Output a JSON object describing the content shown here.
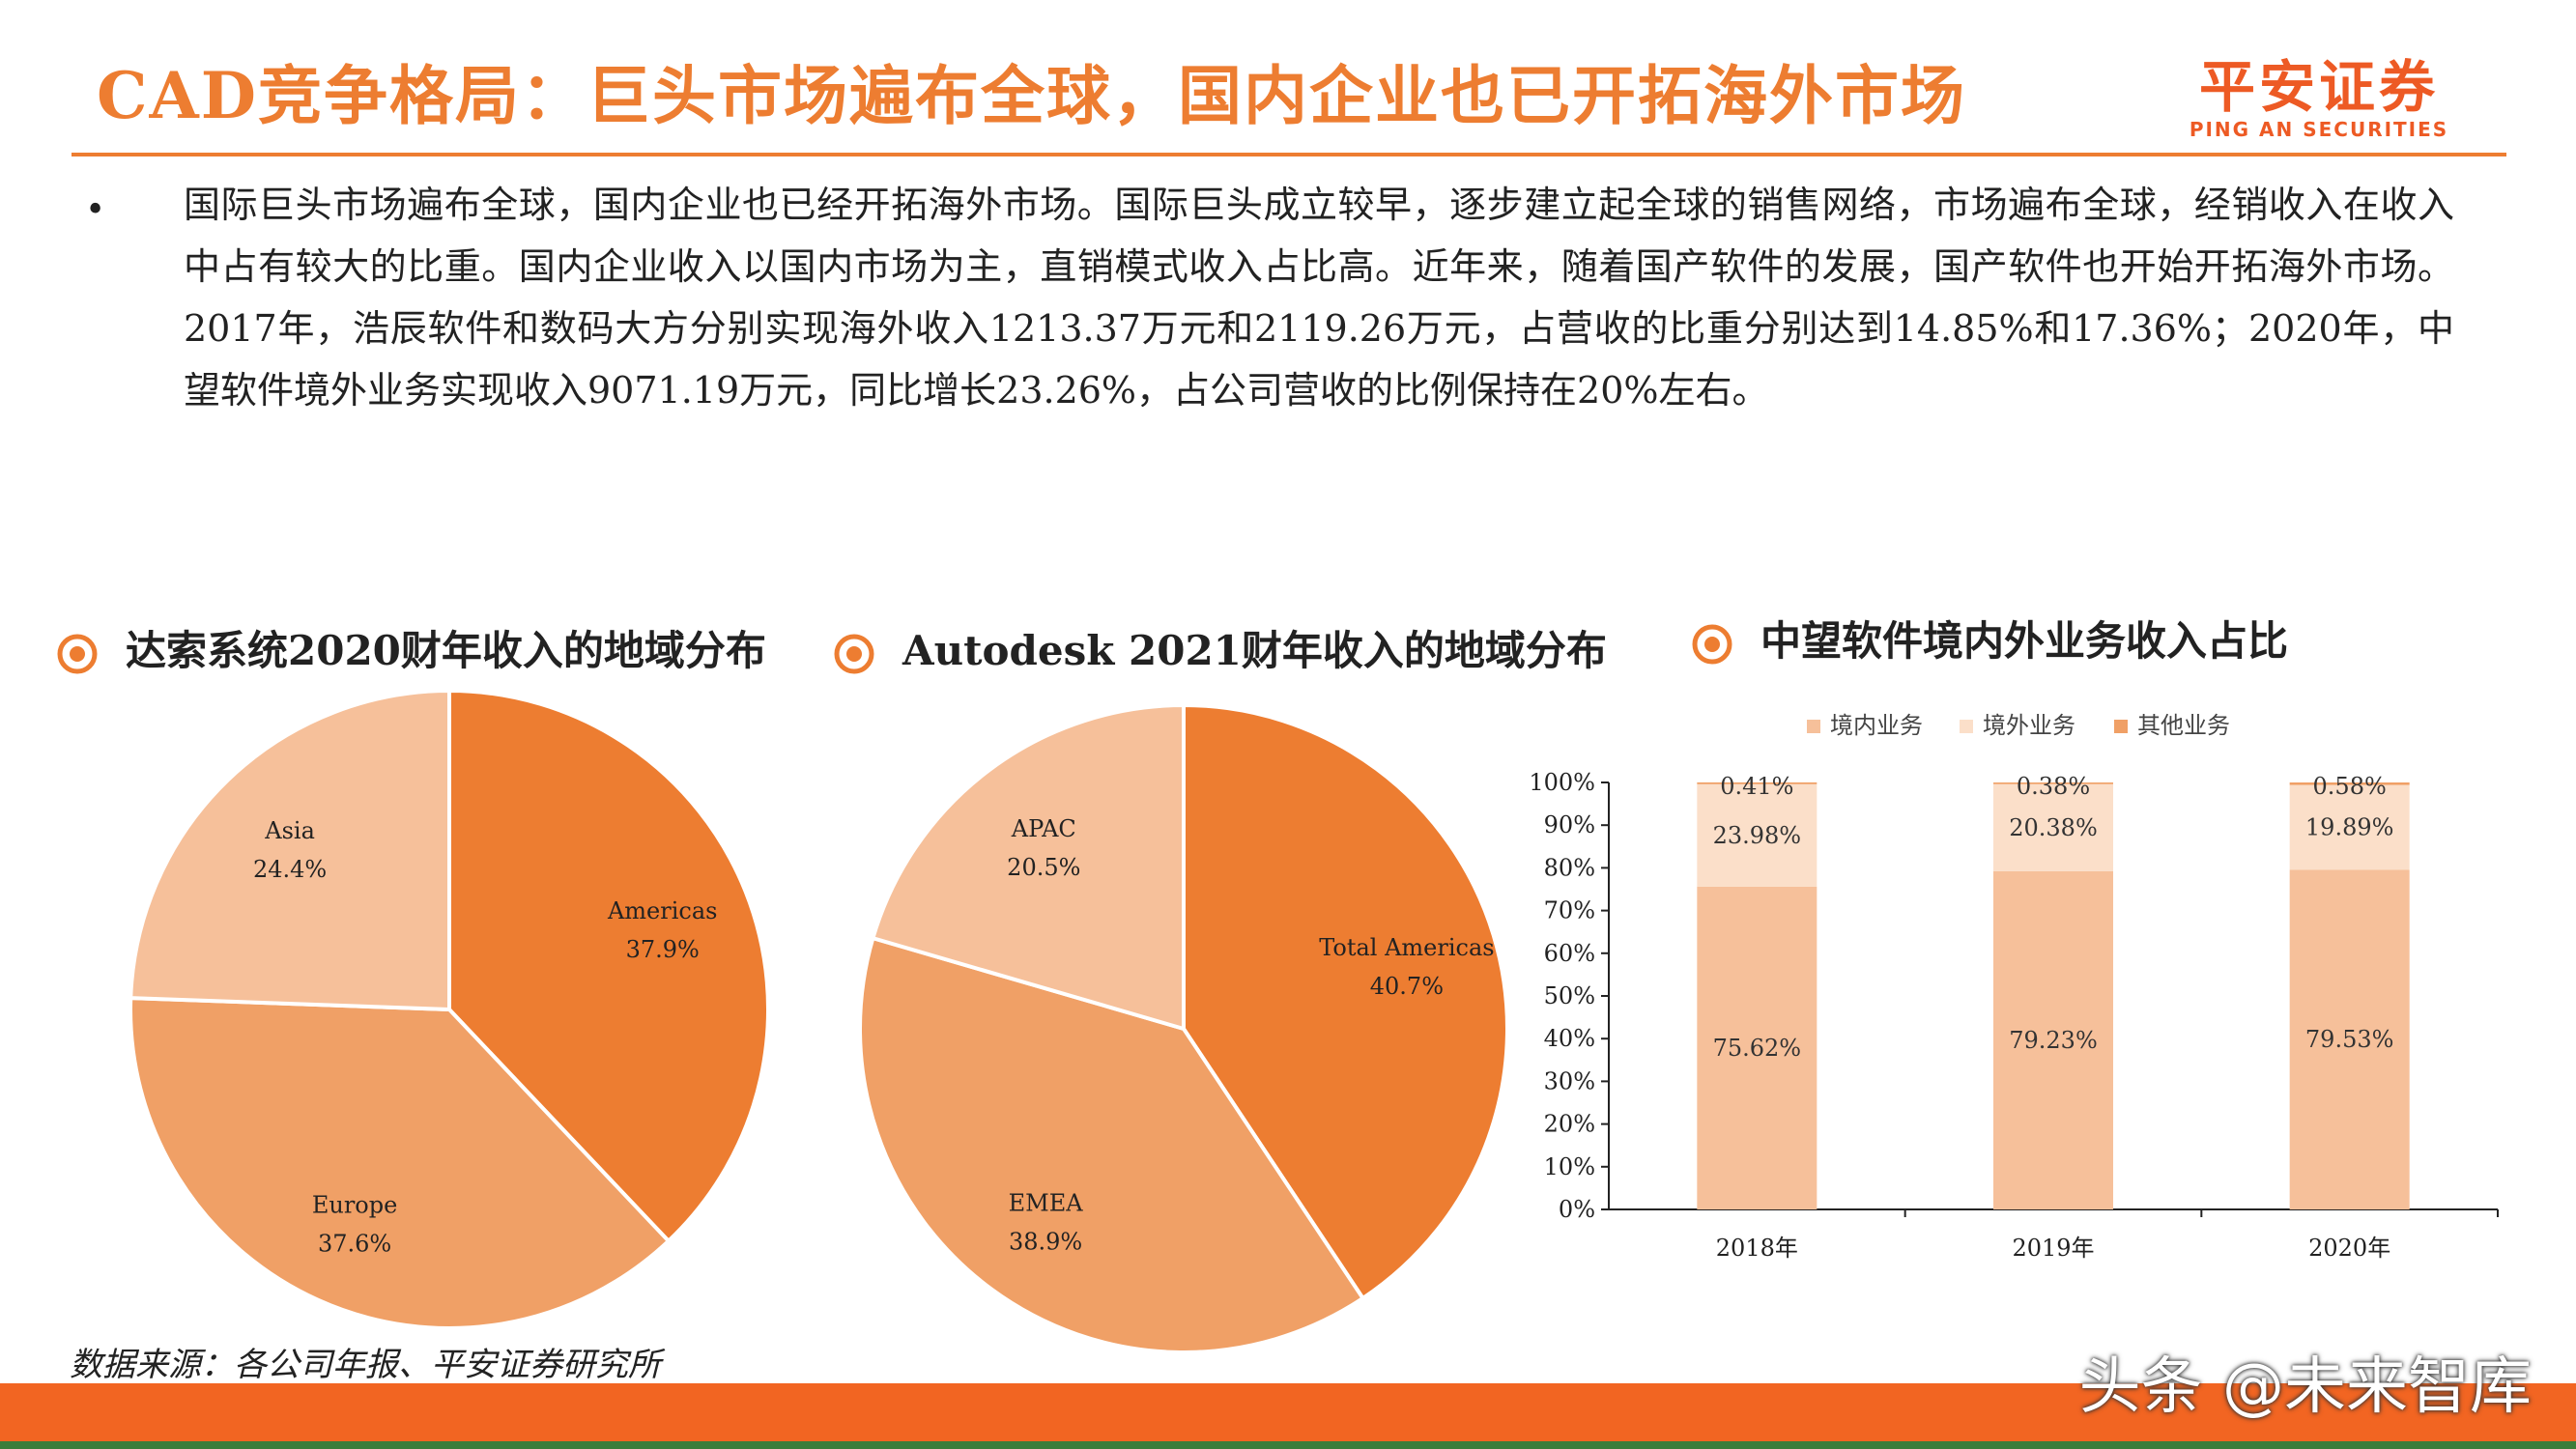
{
  "header": {
    "title": "CAD竞争格局：巨头市场遍布全球，国内企业也已开拓海外市场",
    "logo_cn": "平安证券",
    "logo_en": "PING AN SECURITIES"
  },
  "bullet": {
    "marker": "•",
    "text": "国际巨头市场遍布全球，国内企业也已经开拓海外市场。国际巨头成立较早，逐步建立起全球的销售网络，市场遍布全球，经销收入在收入中占有较大的比重。国内企业收入以国内市场为主，直销模式收入占比高。近年来，随着国产软件的发展，国产软件也开始开拓海外市场。2017年，浩辰软件和数码大方分别实现海外收入1213.37万元和2119.26万元，占营收的比重分别达到14.85%和17.36%；2020年，中望软件境外业务实现收入9071.19万元，同比增长23.26%，占公司营收的比例保持在20%左右。"
  },
  "chart_data": [
    {
      "type": "pie",
      "title": "达索系统2020财年收入的地域分布",
      "labels": [
        "Americas",
        "Europe",
        "Asia"
      ],
      "values": [
        37.9,
        37.6,
        24.4
      ],
      "value_labels": [
        "37.9%",
        "37.6%",
        "24.4%"
      ],
      "colors": [
        "#ED7D31",
        "#F0A066",
        "#F6C09A"
      ],
      "start": "12 o'clock, clockwise"
    },
    {
      "type": "pie",
      "title": "Autodesk 2021财年收入的地域分布",
      "labels": [
        "Total Americas",
        "EMEA",
        "APAC"
      ],
      "values": [
        40.7,
        38.9,
        20.5
      ],
      "value_labels": [
        "40.7%",
        "38.9%",
        "20.5%"
      ],
      "colors": [
        "#ED7D31",
        "#F0A066",
        "#F6C09A"
      ],
      "start": "12 o'clock, clockwise"
    },
    {
      "type": "bar",
      "stacked": true,
      "title": "中望软件境内外业务收入占比",
      "categories": [
        "2018年",
        "2019年",
        "2020年"
      ],
      "series": [
        {
          "name": "境内业务",
          "values": [
            75.62,
            79.23,
            79.53
          ],
          "labels": [
            "75.62%",
            "79.23%",
            "79.53%"
          ],
          "color": "#F6C09A"
        },
        {
          "name": "境外业务",
          "values": [
            23.98,
            20.38,
            19.89
          ],
          "labels": [
            "23.98%",
            "20.38%",
            "19.89%"
          ],
          "color": "#FBDFC9"
        },
        {
          "name": "其他业务",
          "values": [
            0.41,
            0.38,
            0.58
          ],
          "labels": [
            "0.41%",
            "0.38%",
            "0.58%"
          ],
          "color": "#F0A066"
        }
      ],
      "yticks": [
        "0%",
        "10%",
        "20%",
        "30%",
        "40%",
        "50%",
        "60%",
        "70%",
        "80%",
        "90%",
        "100%"
      ],
      "ylim": [
        0,
        100
      ],
      "legend": "top",
      "grid": false
    }
  ],
  "source": "数据来源：各公司年报、平安证券研究所",
  "watermark": "头条 @未来智库"
}
